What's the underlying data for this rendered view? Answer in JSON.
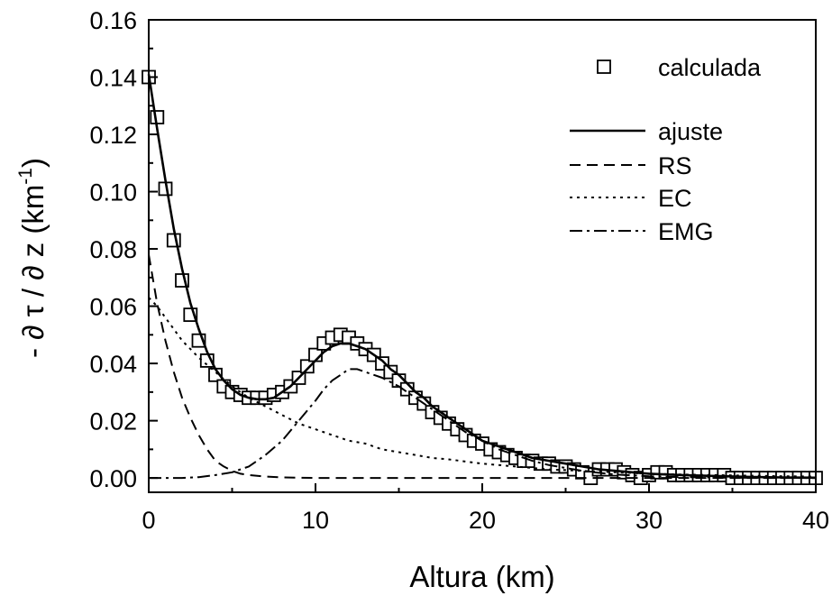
{
  "chart_data": {
    "type": "line",
    "title": "",
    "xlabel": "Altura (km)",
    "ylabel": "- ∂ τ / ∂ z  (km",
    "ylabel_superscript": "-1",
    "ylabel_suffix": ")",
    "xlim": [
      0,
      40
    ],
    "ylim": [
      -0.005,
      0.16
    ],
    "xticks": [
      0,
      10,
      20,
      30,
      40
    ],
    "xtick_labels": [
      "0",
      "10",
      "20",
      "30",
      "40"
    ],
    "yticks": [
      0.0,
      0.02,
      0.04,
      0.06,
      0.08,
      0.1,
      0.12,
      0.14,
      0.16
    ],
    "ytick_labels": [
      "0.00",
      "0.02",
      "0.04",
      "0.06",
      "0.08",
      "0.10",
      "0.12",
      "0.14",
      "0.16"
    ],
    "grid": false,
    "legend_position": "top-right",
    "legend": [
      "calculada",
      "ajuste",
      "RS",
      "EC",
      "EMG"
    ],
    "series": [
      {
        "name": "calculada",
        "style": "square-markers",
        "color": "#000000",
        "x": [
          0.0,
          0.5,
          1.0,
          1.5,
          2.0,
          2.5,
          3.0,
          3.5,
          4.0,
          4.5,
          5.0,
          5.5,
          6.0,
          6.5,
          7.0,
          7.5,
          8.0,
          8.5,
          9.0,
          9.5,
          10.0,
          10.5,
          11.0,
          11.5,
          12.0,
          12.5,
          13.0,
          13.5,
          14.0,
          14.5,
          15.0,
          15.5,
          16.0,
          16.5,
          17.0,
          17.5,
          18.0,
          18.5,
          19.0,
          19.5,
          20.0,
          20.5,
          21.0,
          21.5,
          22.0,
          22.5,
          23.0,
          23.5,
          24.0,
          24.5,
          25.0,
          25.5,
          26.0,
          26.5,
          27.0,
          27.5,
          28.0,
          28.5,
          29.0,
          29.5,
          30.0,
          30.5,
          31.0,
          31.5,
          32.0,
          32.5,
          33.0,
          33.5,
          34.0,
          34.5,
          35.0,
          35.5,
          36.0,
          36.5,
          37.0,
          37.5,
          38.0,
          38.5,
          39.0,
          39.5,
          40.0
        ],
        "values": [
          0.14,
          0.126,
          0.101,
          0.083,
          0.069,
          0.057,
          0.048,
          0.041,
          0.036,
          0.032,
          0.03,
          0.029,
          0.028,
          0.028,
          0.028,
          0.029,
          0.03,
          0.032,
          0.035,
          0.039,
          0.043,
          0.047,
          0.049,
          0.05,
          0.049,
          0.047,
          0.045,
          0.043,
          0.04,
          0.037,
          0.034,
          0.031,
          0.028,
          0.026,
          0.023,
          0.021,
          0.019,
          0.017,
          0.015,
          0.013,
          0.012,
          0.01,
          0.009,
          0.008,
          0.007,
          0.006,
          0.006,
          0.005,
          0.005,
          0.004,
          0.004,
          0.003,
          0.002,
          0.0,
          0.003,
          0.003,
          0.003,
          0.002,
          0.001,
          0.0,
          0.001,
          0.002,
          0.002,
          0.001,
          0.001,
          0.001,
          0.001,
          0.001,
          0.001,
          0.001,
          0.0,
          0.0,
          0.0,
          0.0,
          0.0,
          0.0,
          0.0,
          0.0,
          0.0,
          0.0,
          0.0
        ]
      },
      {
        "name": "ajuste",
        "style": "solid",
        "color": "#000000",
        "x": [
          0.0,
          0.5,
          1.0,
          1.5,
          2.0,
          2.5,
          3.0,
          3.5,
          4.0,
          4.5,
          5.0,
          5.5,
          6.0,
          6.5,
          7.0,
          7.5,
          8.0,
          8.5,
          9.0,
          9.5,
          10.0,
          10.5,
          11.0,
          11.5,
          12.0,
          12.5,
          13.0,
          13.5,
          14.0,
          14.5,
          15.0,
          15.5,
          16.0,
          16.5,
          17.0,
          17.5,
          18.0,
          18.5,
          19.0,
          19.5,
          20.0,
          21.0,
          22.0,
          23.0,
          24.0,
          25.0,
          26.0,
          27.0,
          28.0,
          29.0,
          30.0,
          32.0,
          34.0,
          36.0,
          38.0,
          40.0
        ],
        "values": [
          0.141,
          0.122,
          0.104,
          0.087,
          0.073,
          0.061,
          0.052,
          0.044,
          0.038,
          0.034,
          0.031,
          0.029,
          0.028,
          0.0275,
          0.0275,
          0.028,
          0.03,
          0.032,
          0.035,
          0.038,
          0.041,
          0.044,
          0.046,
          0.047,
          0.047,
          0.046,
          0.045,
          0.043,
          0.041,
          0.038,
          0.036,
          0.033,
          0.03,
          0.028,
          0.025,
          0.023,
          0.021,
          0.019,
          0.017,
          0.015,
          0.013,
          0.011,
          0.009,
          0.007,
          0.006,
          0.005,
          0.004,
          0.003,
          0.0025,
          0.002,
          0.0015,
          0.001,
          0.0007,
          0.0004,
          0.0002,
          0.0001
        ]
      },
      {
        "name": "RS",
        "style": "dashed",
        "color": "#000000",
        "x": [
          0.0,
          0.5,
          1.0,
          1.5,
          2.0,
          2.5,
          3.0,
          3.5,
          4.0,
          4.5,
          5.0,
          5.5,
          6.0,
          7.0,
          8.0,
          10.0,
          15.0,
          20.0,
          30.0,
          40.0
        ],
        "values": [
          0.078,
          0.061,
          0.048,
          0.037,
          0.028,
          0.021,
          0.015,
          0.01,
          0.006,
          0.004,
          0.0025,
          0.0015,
          0.001,
          0.0005,
          0.0002,
          0.0,
          0.0,
          0.0,
          0.0,
          0.0
        ]
      },
      {
        "name": "EC",
        "style": "dotted",
        "color": "#000000",
        "x": [
          0.0,
          0.5,
          1.0,
          1.5,
          2.0,
          2.5,
          3.0,
          4.0,
          5.0,
          6.0,
          7.0,
          8.0,
          9.0,
          10.0,
          11.0,
          12.0,
          13.0,
          14.0,
          15.0,
          16.0,
          17.0,
          18.0,
          20.0,
          22.0,
          24.0,
          26.0,
          28.0,
          30.0,
          32.0,
          34.0,
          36.0,
          38.0,
          40.0
        ],
        "values": [
          0.063,
          0.06,
          0.056,
          0.052,
          0.048,
          0.045,
          0.042,
          0.037,
          0.032,
          0.028,
          0.025,
          0.022,
          0.019,
          0.017,
          0.015,
          0.013,
          0.012,
          0.01,
          0.009,
          0.008,
          0.007,
          0.0065,
          0.005,
          0.004,
          0.003,
          0.0025,
          0.002,
          0.0015,
          0.0012,
          0.001,
          0.0008,
          0.0006,
          0.0005
        ]
      },
      {
        "name": "EMG",
        "style": "dash-dot",
        "color": "#000000",
        "x": [
          0.0,
          2.0,
          3.0,
          4.0,
          5.0,
          6.0,
          7.0,
          8.0,
          9.0,
          10.0,
          10.5,
          11.0,
          11.5,
          12.0,
          12.5,
          13.0,
          13.5,
          14.0,
          15.0,
          16.0,
          17.0,
          18.0,
          19.0,
          20.0,
          21.0,
          22.0,
          23.0,
          24.0,
          25.0,
          26.0,
          27.0,
          28.0,
          30.0,
          32.0,
          35.0,
          40.0
        ],
        "values": [
          0.0,
          0.0,
          0.0003,
          0.001,
          0.002,
          0.004,
          0.008,
          0.013,
          0.02,
          0.027,
          0.031,
          0.034,
          0.036,
          0.038,
          0.038,
          0.037,
          0.036,
          0.035,
          0.032,
          0.028,
          0.024,
          0.02,
          0.016,
          0.013,
          0.01,
          0.008,
          0.006,
          0.0045,
          0.0035,
          0.0025,
          0.0018,
          0.0012,
          0.0006,
          0.0003,
          0.0001,
          0.0
        ]
      }
    ]
  }
}
